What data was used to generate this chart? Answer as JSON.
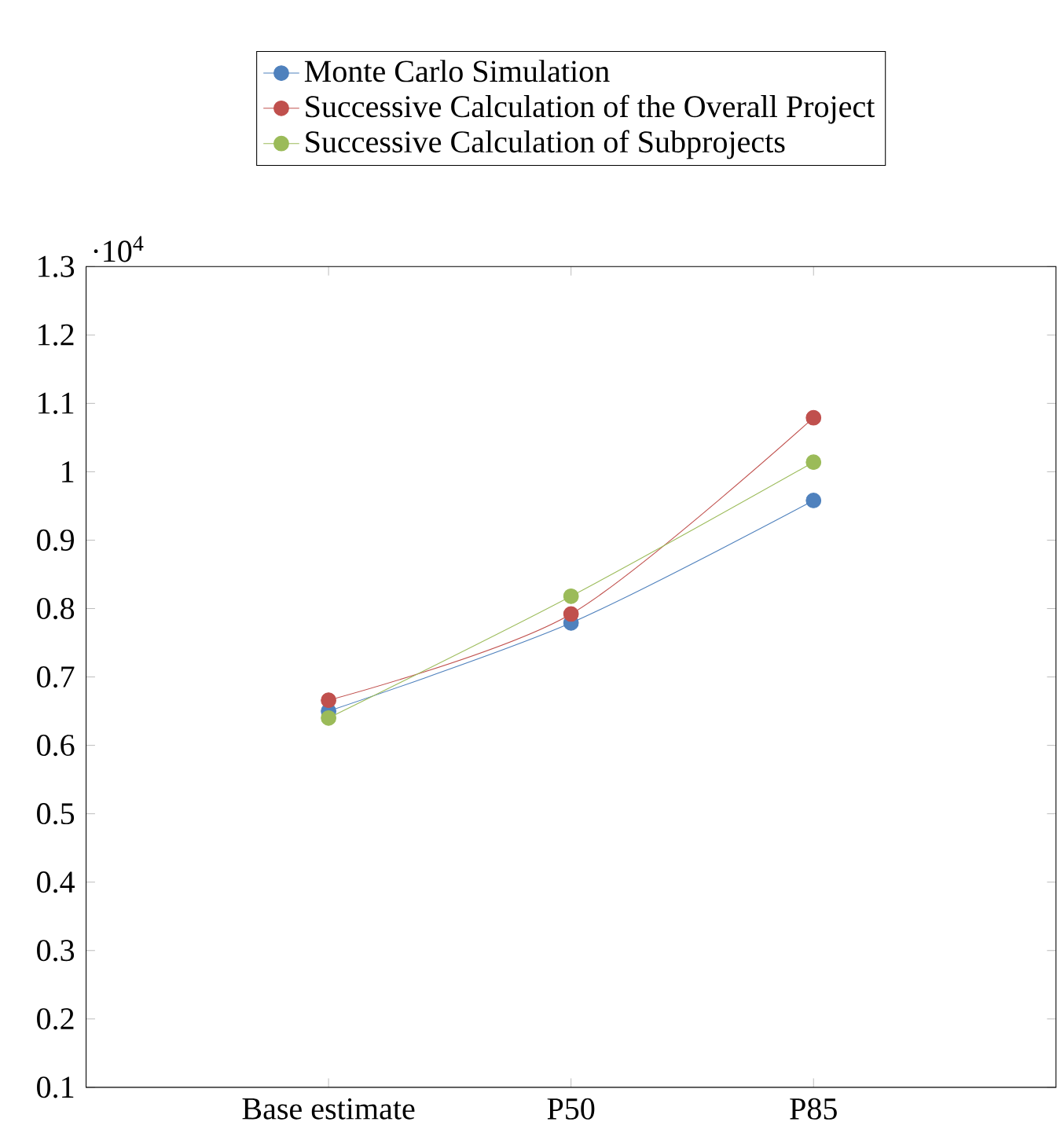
{
  "chart_data": {
    "type": "line",
    "categories": [
      "Base estimate",
      "P50",
      "P85"
    ],
    "series": [
      {
        "name": "Monte Carlo Simulation",
        "color": "#4f81bd",
        "values": [
          0.65,
          0.779,
          0.958
        ]
      },
      {
        "name": "Successive Calculation of the Overall Project",
        "color": "#c0504d",
        "values": [
          0.666,
          0.792,
          1.079
        ]
      },
      {
        "name": "Successive Calculation of Subprojects",
        "color": "#9bbb59",
        "values": [
          0.64,
          0.818,
          1.014
        ]
      }
    ],
    "ylim": [
      0.1,
      1.3
    ],
    "yticks": [
      0.1,
      0.2,
      0.3,
      0.4,
      0.5,
      0.6,
      0.7,
      0.8,
      0.9,
      1,
      1.1,
      1.2,
      1.3
    ],
    "annotations": [
      "·10$^{4}$"
    ],
    "legend": "top",
    "marker": "circle",
    "line_style": "solid",
    "grid": false
  }
}
